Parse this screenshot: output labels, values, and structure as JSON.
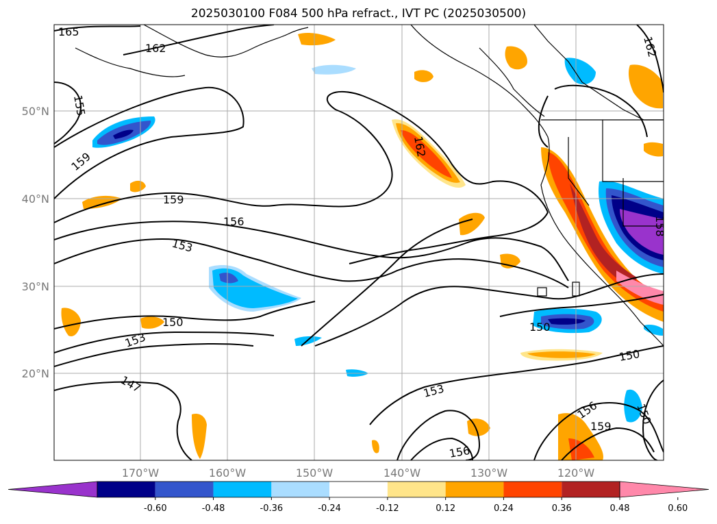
{
  "title": "2025030100 F084 500 hPa refract., IVT PC (2025030500)",
  "lat_labels": [
    "50°N",
    "40°N",
    "30°N",
    "20°N"
  ],
  "lon_labels": [
    "170°W",
    "160°W",
    "150°W",
    "140°W",
    "130°W",
    "120°W"
  ],
  "contour_labels": [
    "165",
    "162",
    "155",
    "159",
    "159",
    "156",
    "153",
    "150",
    "153",
    "147",
    "162",
    "162",
    "150",
    "150",
    "153",
    "156",
    "156",
    "159",
    "150",
    "158"
  ],
  "colorbar": {
    "ticks": [
      "-0.60",
      "-0.48",
      "-0.36",
      "-0.24",
      "-0.12",
      "0.12",
      "0.24",
      "0.36",
      "0.48",
      "0.60"
    ],
    "colors": [
      "#9933cc",
      "#000088",
      "#3355cc",
      "#00bbff",
      "#aaddff",
      "#ffffff",
      "#ffe58a",
      "#ffa500",
      "#ff4400",
      "#b22222",
      "#ff88aa"
    ]
  }
}
